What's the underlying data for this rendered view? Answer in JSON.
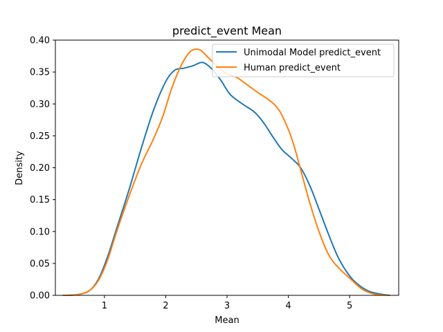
{
  "chart_data": {
    "type": "line",
    "title": "predict_event Mean",
    "xlabel": "Mean",
    "ylabel": "Density",
    "xlim": [
      0.2,
      5.8
    ],
    "ylim": [
      0.0,
      0.4
    ],
    "xticks": [
      "1",
      "2",
      "3",
      "4",
      "5"
    ],
    "yticks": [
      "0.00",
      "0.05",
      "0.10",
      "0.15",
      "0.20",
      "0.25",
      "0.30",
      "0.35",
      "0.40"
    ],
    "grid": false,
    "legend_position": "top-right",
    "series": [
      {
        "name": "Unimodal Model predict_event",
        "color": "#1f77b4",
        "x": [
          0.32,
          0.55,
          0.75,
          0.9,
          1.05,
          1.2,
          1.4,
          1.6,
          1.8,
          2.0,
          2.15,
          2.3,
          2.45,
          2.6,
          2.75,
          2.9,
          3.05,
          3.25,
          3.45,
          3.6,
          3.75,
          3.9,
          4.05,
          4.2,
          4.35,
          4.5,
          4.65,
          4.8,
          4.95,
          5.1,
          5.3,
          5.5,
          5.66
        ],
        "y": [
          0.0,
          0.001,
          0.007,
          0.025,
          0.06,
          0.105,
          0.165,
          0.23,
          0.29,
          0.335,
          0.353,
          0.356,
          0.36,
          0.365,
          0.355,
          0.337,
          0.315,
          0.3,
          0.287,
          0.27,
          0.248,
          0.228,
          0.215,
          0.2,
          0.172,
          0.135,
          0.097,
          0.062,
          0.037,
          0.02,
          0.007,
          0.002,
          0.0
        ]
      },
      {
        "name": "Human predict_event",
        "color": "#ff7f0e",
        "x": [
          0.32,
          0.55,
          0.75,
          0.9,
          1.05,
          1.2,
          1.4,
          1.6,
          1.8,
          1.95,
          2.1,
          2.25,
          2.4,
          2.55,
          2.7,
          2.85,
          3.0,
          3.15,
          3.3,
          3.5,
          3.7,
          3.85,
          4.0,
          4.1,
          4.2,
          4.35,
          4.5,
          4.65,
          4.8,
          5.0,
          5.2,
          5.4,
          5.66
        ],
        "y": [
          0.0,
          0.001,
          0.007,
          0.023,
          0.055,
          0.1,
          0.155,
          0.205,
          0.245,
          0.28,
          0.325,
          0.36,
          0.382,
          0.385,
          0.372,
          0.358,
          0.347,
          0.342,
          0.332,
          0.318,
          0.305,
          0.29,
          0.26,
          0.232,
          0.197,
          0.145,
          0.1,
          0.065,
          0.045,
          0.027,
          0.01,
          0.002,
          0.0
        ]
      }
    ]
  }
}
